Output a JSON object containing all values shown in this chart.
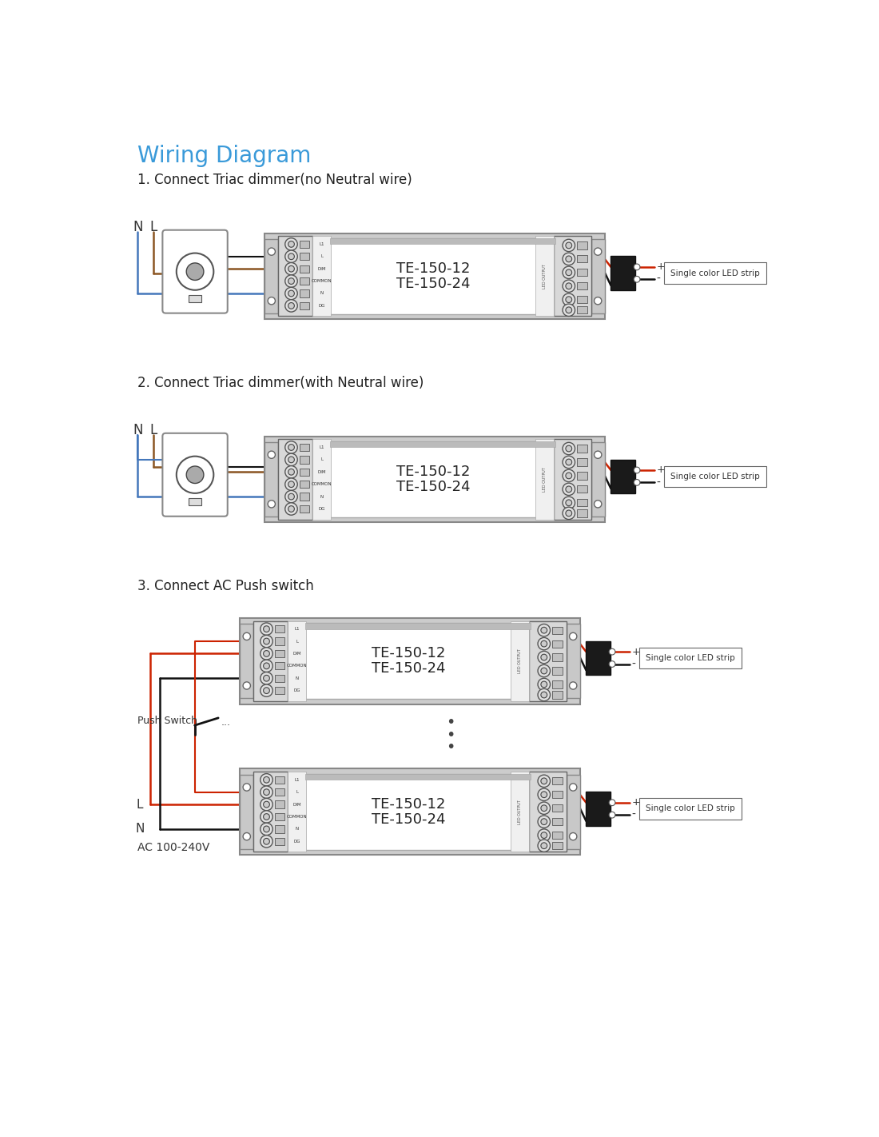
{
  "title": "Wiring Diagram",
  "title_color": "#3a9ad9",
  "title_fontsize": 20,
  "bg_color": "#ffffff",
  "section1_title": "1. Connect Triac dimmer(no Neutral wire)",
  "section2_title": "2. Connect Triac dimmer(with Neutral wire)",
  "section3_title": "3. Connect AC Push switch",
  "model_text1": "TE-150-12",
  "model_text2": "TE-150-24",
  "led_label": "Single color LED strip",
  "ac_label": "AC 100-240V",
  "push_switch_label": "Push Switch",
  "wire_red": "#cc2200",
  "wire_blue": "#4477bb",
  "wire_brown": "#8B5522",
  "wire_black": "#111111",
  "wire_gray": "#888888"
}
